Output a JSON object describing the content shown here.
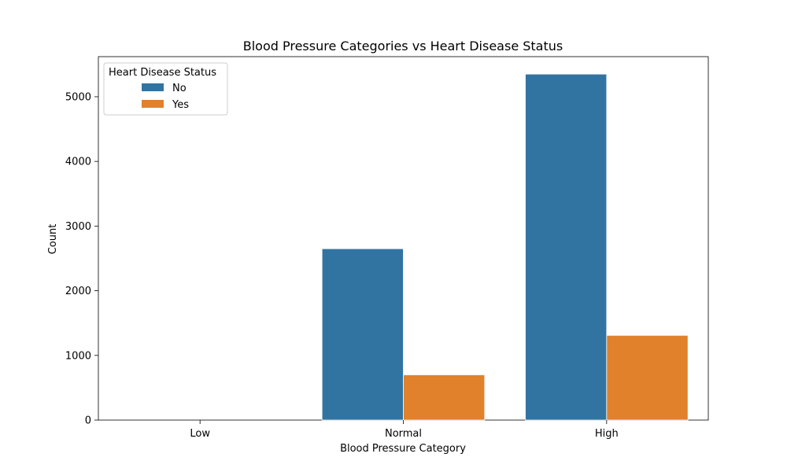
{
  "chart_data": {
    "type": "bar",
    "title": "Blood Pressure Categories vs Heart Disease Status",
    "xlabel": "Blood Pressure Category",
    "ylabel": "Count",
    "categories": [
      "Low",
      "Normal",
      "High"
    ],
    "series": [
      {
        "name": "No",
        "values": [
          0,
          2650,
          5350
        ],
        "color": "#3274a1"
      },
      {
        "name": "Yes",
        "values": [
          0,
          700,
          1310
        ],
        "color": "#e1812c"
      }
    ],
    "ylim": [
      0,
      5620
    ],
    "yticks": [
      0,
      1000,
      2000,
      3000,
      4000,
      5000
    ],
    "grid": false,
    "legend": {
      "title": "Heart Disease Status",
      "placement": "top-left"
    }
  }
}
